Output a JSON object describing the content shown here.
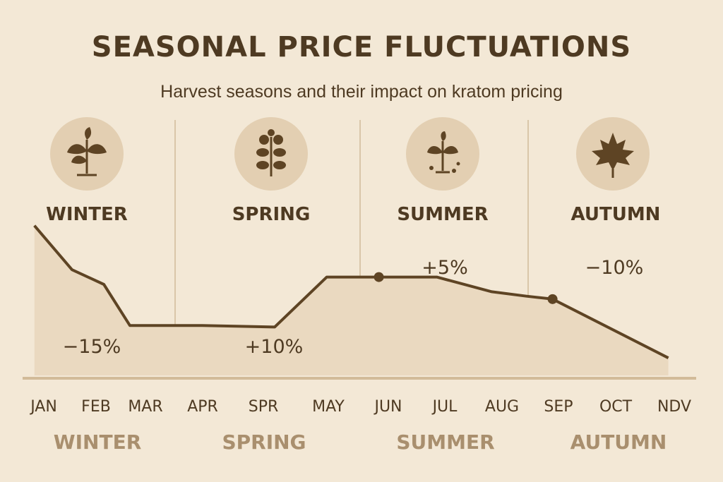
{
  "title": "SEASONAL PRICE FLUCTUATIONS",
  "subtitle": "Harvest seasons and their impact on kratom pricing",
  "colors": {
    "background": "#f3e8d6",
    "line": "#5e4424",
    "area": "#ead9c0",
    "icon_circle": "#e3cfb2",
    "season_label_muted": "#a98f6e",
    "divider": "#d9c6a9"
  },
  "seasons": [
    {
      "name": "WINTER",
      "icon": "seedling-icon",
      "change": "−15%"
    },
    {
      "name": "SPRING",
      "icon": "budding-plant-icon",
      "change": "+10%"
    },
    {
      "name": "SUMMER",
      "icon": "sprout-with-seeds-icon",
      "change": "+5%"
    },
    {
      "name": "AUTUMN",
      "icon": "maple-leaf-icon",
      "change": "−10%"
    }
  ],
  "chart_data": {
    "type": "area",
    "categories": [
      "JAN",
      "FEB",
      "MAR",
      "APR",
      "SPR",
      "MAY",
      "JUN",
      "JUL",
      "AUG",
      "SEP",
      "OCT",
      "NDV"
    ],
    "season_labels": [
      "WINTER",
      "SPRING",
      "SUMMER",
      "AUTUMN"
    ],
    "annotations": [
      "−15%",
      "+10%",
      "+5%",
      "−10%"
    ],
    "x": [
      0.35,
      1.0,
      1.55,
      2.0,
      3.25,
      4.5,
      5.4,
      6.3,
      7.3,
      8.25,
      8.85,
      9.3,
      11.3
    ],
    "y": [
      100,
      70,
      60,
      32,
      32,
      31,
      65,
      65,
      65,
      55,
      52,
      50,
      10
    ],
    "markers": [
      {
        "x": 6.3,
        "y": 65
      },
      {
        "x": 9.3,
        "y": 50
      }
    ],
    "ylim": [
      0,
      120
    ],
    "xlim": [
      0,
      12
    ],
    "grid": false,
    "legend": "none"
  }
}
